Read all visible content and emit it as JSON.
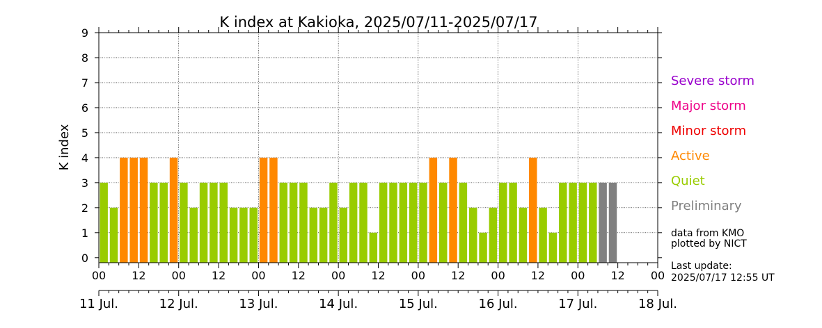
{
  "chart_data": {
    "type": "bar",
    "title": "K index at Kakioka, 2025/07/11-2025/07/17",
    "ylabel": "K index",
    "ylim": [
      0,
      9
    ],
    "yticks": [
      "0",
      "1",
      "2",
      "3",
      "4",
      "5",
      "6",
      "7",
      "8",
      "9"
    ],
    "x_hour_ticks": [
      "00",
      "12",
      "00",
      "12",
      "00",
      "12",
      "00",
      "12",
      "00",
      "12",
      "00",
      "12",
      "00",
      "12",
      "00"
    ],
    "x_date_ticks": [
      "11 Jul.",
      "12 Jul.",
      "13 Jul.",
      "14 Jul.",
      "15 Jul.",
      "16 Jul.",
      "17 Jul.",
      "18 Jul."
    ],
    "interval_hours": 3,
    "grid": true,
    "values": [
      3,
      2,
      4,
      4,
      4,
      3,
      3,
      4,
      3,
      2,
      3,
      3,
      3,
      2,
      2,
      2,
      4,
      4,
      3,
      3,
      3,
      2,
      2,
      3,
      2,
      3,
      3,
      1,
      3,
      3,
      3,
      3,
      3,
      4,
      3,
      4,
      3,
      2,
      1,
      2,
      3,
      3,
      2,
      4,
      2,
      1,
      3,
      3,
      3,
      3,
      3,
      3
    ],
    "status": [
      "quiet",
      "quiet",
      "active",
      "active",
      "active",
      "quiet",
      "quiet",
      "active",
      "quiet",
      "quiet",
      "quiet",
      "quiet",
      "quiet",
      "quiet",
      "quiet",
      "quiet",
      "active",
      "active",
      "quiet",
      "quiet",
      "quiet",
      "quiet",
      "quiet",
      "quiet",
      "quiet",
      "quiet",
      "quiet",
      "quiet",
      "quiet",
      "quiet",
      "quiet",
      "quiet",
      "quiet",
      "active",
      "quiet",
      "active",
      "quiet",
      "quiet",
      "quiet",
      "quiet",
      "quiet",
      "quiet",
      "quiet",
      "active",
      "quiet",
      "quiet",
      "quiet",
      "quiet",
      "quiet",
      "quiet",
      "preliminary",
      "preliminary"
    ],
    "legend": [
      {
        "key": "severe",
        "label": "Severe storm",
        "color": "#9900cc"
      },
      {
        "key": "major",
        "label": "Major storm",
        "color": "#ee0088"
      },
      {
        "key": "minor",
        "label": "Minor storm",
        "color": "#ee0000"
      },
      {
        "key": "active",
        "label": "Active",
        "color": "#ff8800"
      },
      {
        "key": "quiet",
        "label": "Quiet",
        "color": "#99cc00"
      },
      {
        "key": "preliminary",
        "label": "Preliminary",
        "color": "#808080"
      }
    ],
    "notes": {
      "source": "data from KMO",
      "plotted_by": "plotted by NICT",
      "update_label": "Last update:",
      "update_time": "2025/07/17 12:55 UT"
    }
  }
}
